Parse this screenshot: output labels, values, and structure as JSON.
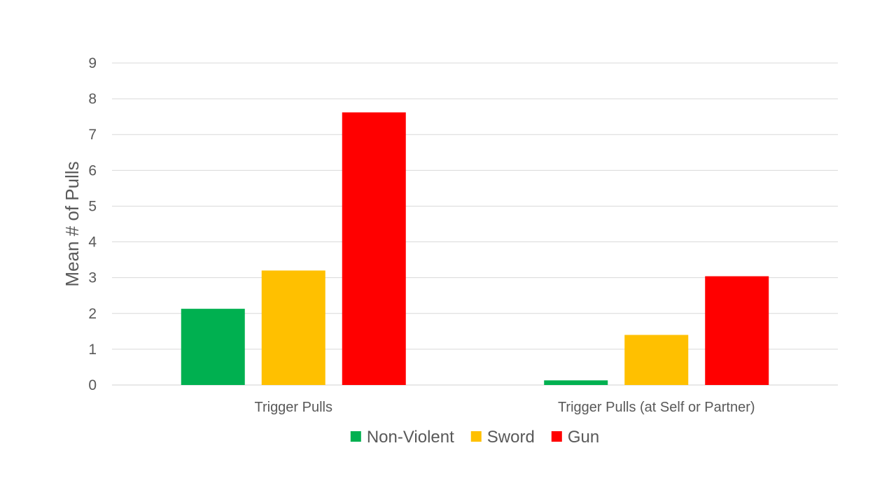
{
  "chart_data": {
    "type": "bar",
    "title": "",
    "xlabel": "",
    "ylabel": "Mean # of Pulls",
    "ylim": [
      0,
      9
    ],
    "yticks": [
      "0",
      "1",
      "2",
      "3",
      "4",
      "5",
      "6",
      "7",
      "8",
      "9"
    ],
    "grid": true,
    "legend_position": "bottom",
    "categories": [
      "Trigger Pulls",
      "Trigger Pulls (at Self or Partner)"
    ],
    "series": [
      {
        "name": "Non-Violent",
        "color": "#00B050",
        "values": [
          2.13,
          0.13
        ]
      },
      {
        "name": "Sword",
        "color": "#FFC000",
        "values": [
          3.2,
          1.4
        ]
      },
      {
        "name": "Gun",
        "color": "#FF0000",
        "values": [
          7.62,
          3.04
        ]
      }
    ]
  }
}
